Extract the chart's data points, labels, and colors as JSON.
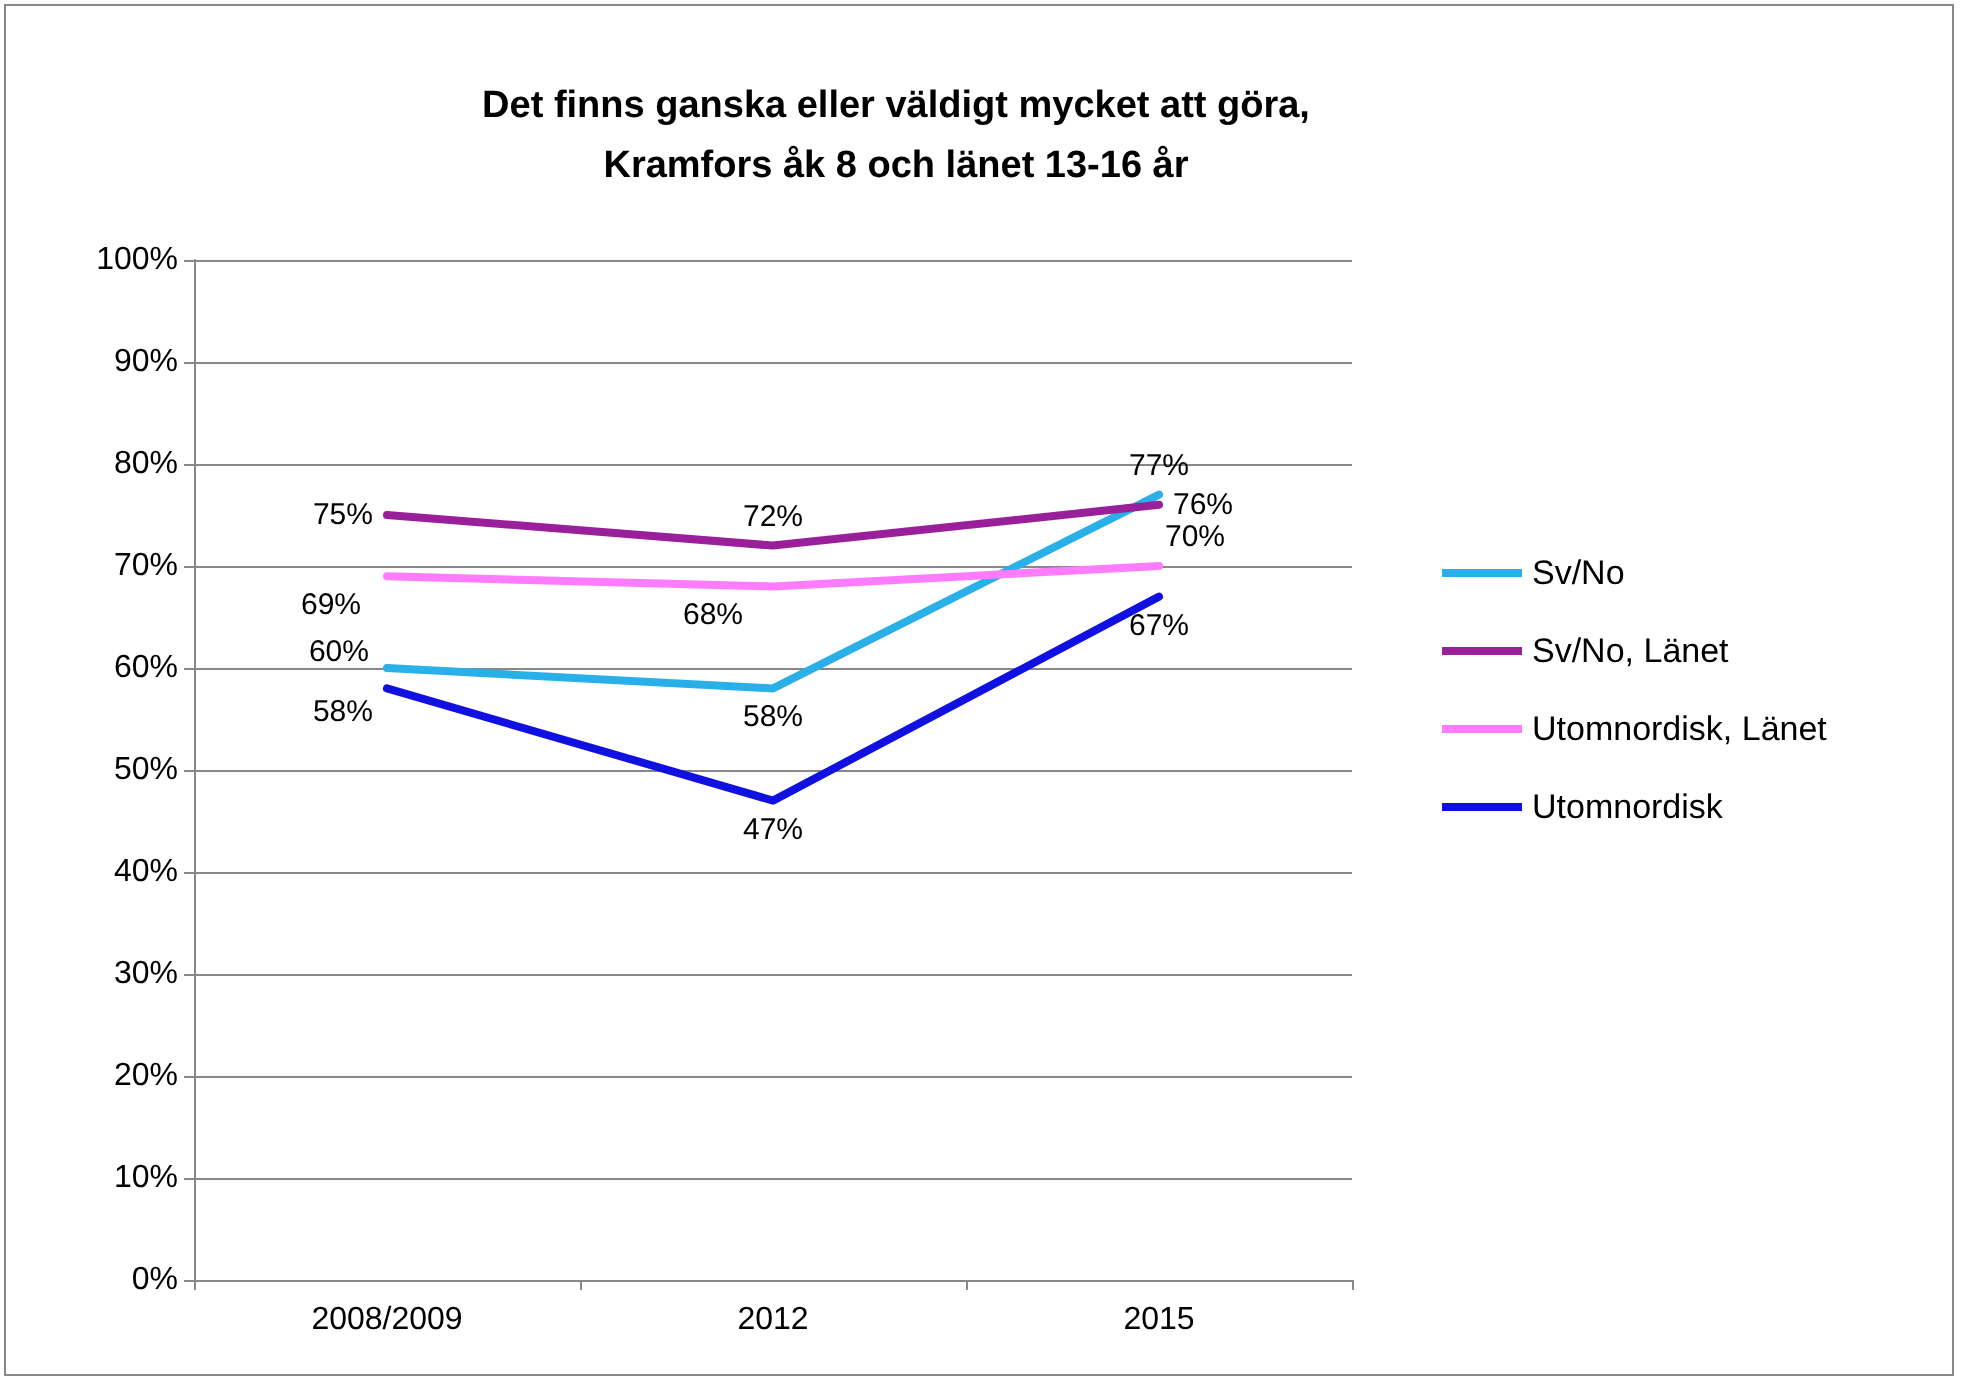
{
  "chart_data": {
    "type": "line",
    "title": "Det finns ganska eller väldigt mycket att göra,\nKramfors åk 8 och länet 13-16 år",
    "categories": [
      "2008/2009",
      "2012",
      "2015"
    ],
    "series": [
      {
        "name": "Sv/No",
        "color": "#2ab0e8",
        "values": [
          60,
          58,
          77
        ],
        "value_labels": [
          "60%",
          "58%",
          "77%"
        ]
      },
      {
        "name": "Sv/No, Länet",
        "color": "#99209a",
        "values": [
          75,
          72,
          76
        ],
        "value_labels": [
          "75%",
          "72%",
          "76%"
        ]
      },
      {
        "name": "Utomnordisk, Länet",
        "color": "#ff7cff",
        "values": [
          69,
          68,
          70
        ],
        "value_labels": [
          "69%",
          "68%",
          "70%"
        ]
      },
      {
        "name": "Utomnordisk",
        "color": "#1010e0",
        "values": [
          58,
          47,
          67
        ],
        "value_labels": [
          "58%",
          "47%",
          "67%"
        ]
      }
    ],
    "ylim": [
      0,
      100
    ],
    "yticks": [
      {
        "value": 0,
        "label": "0%"
      },
      {
        "value": 10,
        "label": "10%"
      },
      {
        "value": 20,
        "label": "20%"
      },
      {
        "value": 30,
        "label": "30%"
      },
      {
        "value": 40,
        "label": "40%"
      },
      {
        "value": 50,
        "label": "50%"
      },
      {
        "value": 60,
        "label": "60%"
      },
      {
        "value": 70,
        "label": "70%"
      },
      {
        "value": 80,
        "label": "80%"
      },
      {
        "value": 90,
        "label": "90%"
      },
      {
        "value": 100,
        "label": "100%"
      }
    ],
    "grid": "y",
    "legend": "right",
    "marker": "none",
    "line_style": "solid"
  }
}
